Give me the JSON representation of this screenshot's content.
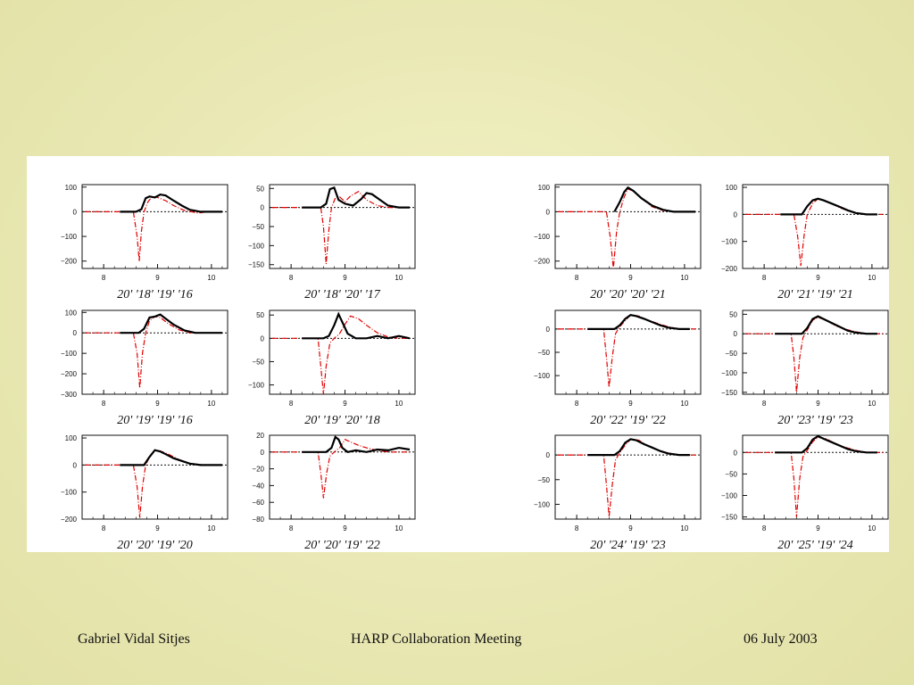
{
  "footer": {
    "author": "Gabriel Vidal Sitjes",
    "meeting": "HARP Collaboration Meeting",
    "date": "06 July 2003"
  },
  "colors": {
    "data": "#000000",
    "fit": "#e00000",
    "background": "#e9e8b4"
  },
  "chart_data": [
    {
      "type": "line",
      "label": "20' '18' '19' '16",
      "xlim": [
        7.6,
        10.3
      ],
      "ylim": [
        -230,
        110
      ],
      "xticks": [
        8,
        9,
        10
      ],
      "yticks": [
        100,
        0,
        -100,
        -200
      ],
      "yticklabels": [
        "100",
        "0",
        "−100",
        "−200"
      ],
      "series": [
        {
          "name": "",
          "kind": "fit",
          "x": [
            7.65,
            8.55,
            8.62,
            8.66,
            8.7,
            8.75,
            8.82,
            8.9,
            9.0,
            9.15,
            9.3,
            9.5,
            9.75,
            9.95,
            10.2
          ],
          "y": [
            0,
            0,
            -100,
            -200,
            -80,
            0,
            40,
            62,
            58,
            45,
            25,
            5,
            -5,
            0,
            0
          ]
        },
        {
          "name": "",
          "kind": "data",
          "x": [
            8.3,
            8.6,
            8.7,
            8.78,
            8.85,
            8.95,
            9.05,
            9.15,
            9.3,
            9.45,
            9.6,
            9.8,
            10.0,
            10.2
          ],
          "y": [
            0,
            0,
            10,
            55,
            62,
            58,
            70,
            66,
            45,
            25,
            8,
            0,
            0,
            0
          ]
        }
      ]
    },
    {
      "type": "line",
      "label": "20' '18' '20' '17",
      "xlim": [
        7.6,
        10.3
      ],
      "ylim": [
        -160,
        60
      ],
      "xticks": [
        8,
        9,
        10
      ],
      "yticks": [
        50,
        0,
        -50,
        -100,
        -150
      ],
      "yticklabels": [
        "50",
        "0",
        "−50",
        "−100",
        "−150"
      ],
      "series": [
        {
          "name": "",
          "kind": "fit",
          "x": [
            7.65,
            8.55,
            8.6,
            8.65,
            8.7,
            8.75,
            8.82,
            8.9,
            9.0,
            9.1,
            9.25,
            9.4,
            9.6,
            9.8,
            10.0,
            10.2
          ],
          "y": [
            0,
            0,
            -50,
            -148,
            -60,
            0,
            25,
            28,
            15,
            30,
            42,
            20,
            5,
            0,
            0,
            0
          ]
        },
        {
          "name": "",
          "kind": "data",
          "x": [
            8.2,
            8.55,
            8.65,
            8.72,
            8.8,
            8.88,
            9.0,
            9.15,
            9.3,
            9.4,
            9.5,
            9.65,
            9.8,
            10.0,
            10.2
          ],
          "y": [
            0,
            0,
            10,
            48,
            52,
            20,
            10,
            5,
            22,
            38,
            35,
            20,
            5,
            0,
            0
          ]
        }
      ]
    },
    {
      "type": "line",
      "label": "20' '20' '20' '21",
      "xlim": [
        7.6,
        10.3
      ],
      "ylim": [
        -230,
        110
      ],
      "xticks": [
        8,
        9,
        10
      ],
      "yticks": [
        100,
        0,
        -100,
        -200
      ],
      "yticklabels": [
        "100",
        "0",
        "−100",
        "−200"
      ],
      "series": [
        {
          "name": "",
          "kind": "fit",
          "x": [
            7.65,
            8.55,
            8.62,
            8.68,
            8.74,
            8.8,
            8.88,
            8.95,
            9.05,
            9.2,
            9.4,
            9.6,
            9.9,
            10.2
          ],
          "y": [
            0,
            0,
            -100,
            -230,
            -80,
            0,
            60,
            92,
            85,
            55,
            20,
            5,
            0,
            0
          ]
        },
        {
          "name": "",
          "kind": "data",
          "x": [
            8.7,
            8.8,
            8.88,
            8.95,
            9.05,
            9.2,
            9.4,
            9.6,
            9.8,
            10.0,
            10.2
          ],
          "y": [
            0,
            40,
            80,
            98,
            85,
            55,
            25,
            8,
            0,
            0,
            0
          ]
        }
      ]
    },
    {
      "type": "line",
      "label": "20' '21' '19' '21",
      "xlim": [
        7.6,
        10.3
      ],
      "ylim": [
        -200,
        110
      ],
      "xticks": [
        8,
        9,
        10
      ],
      "yticks": [
        100,
        0,
        -100,
        -200
      ],
      "yticklabels": [
        "100",
        "0",
        "−100",
        "−200"
      ],
      "series": [
        {
          "name": "",
          "kind": "fit",
          "x": [
            7.65,
            8.55,
            8.62,
            8.68,
            8.74,
            8.8,
            8.9,
            9.0,
            9.2,
            9.4,
            9.6,
            9.9,
            10.2
          ],
          "y": [
            0,
            0,
            -80,
            -190,
            -80,
            0,
            40,
            58,
            45,
            25,
            10,
            0,
            0
          ]
        },
        {
          "name": "",
          "kind": "data",
          "x": [
            8.3,
            8.7,
            8.8,
            8.9,
            9.0,
            9.1,
            9.25,
            9.4,
            9.55,
            9.7,
            9.9,
            10.1
          ],
          "y": [
            0,
            0,
            30,
            52,
            58,
            52,
            40,
            28,
            15,
            5,
            0,
            0
          ]
        }
      ]
    },
    {
      "type": "line",
      "label": "20' '19' '19' '16",
      "xlim": [
        7.6,
        10.3
      ],
      "ylim": [
        -300,
        110
      ],
      "xticks": [
        8,
        9,
        10
      ],
      "yticks": [
        100,
        0,
        -100,
        -200,
        -300
      ],
      "yticklabels": [
        "100",
        "0",
        "−100",
        "−200",
        "−300"
      ],
      "series": [
        {
          "name": "",
          "kind": "fit",
          "x": [
            7.65,
            8.55,
            8.62,
            8.67,
            8.72,
            8.78,
            8.85,
            8.95,
            9.05,
            9.2,
            9.4,
            9.6,
            9.9,
            10.2
          ],
          "y": [
            0,
            0,
            -100,
            -270,
            -100,
            0,
            60,
            80,
            75,
            45,
            15,
            0,
            0,
            0
          ]
        },
        {
          "name": "",
          "kind": "data",
          "x": [
            8.3,
            8.65,
            8.75,
            8.85,
            8.95,
            9.05,
            9.15,
            9.3,
            9.5,
            9.7,
            9.9,
            10.2
          ],
          "y": [
            0,
            0,
            20,
            75,
            80,
            90,
            70,
            40,
            12,
            0,
            0,
            0
          ]
        }
      ]
    },
    {
      "type": "line",
      "label": "20' '19' '20' '18",
      "xlim": [
        7.6,
        10.3
      ],
      "ylim": [
        -120,
        60
      ],
      "xticks": [
        8,
        9,
        10
      ],
      "yticks": [
        50,
        0,
        -50,
        -100
      ],
      "yticklabels": [
        "50",
        "0",
        "−50",
        "−100"
      ],
      "series": [
        {
          "name": "",
          "kind": "fit",
          "x": [
            7.65,
            8.5,
            8.55,
            8.6,
            8.65,
            8.72,
            8.8,
            8.9,
            9.0,
            9.1,
            9.25,
            9.4,
            9.6,
            9.8,
            10.0,
            10.2
          ],
          "y": [
            0,
            0,
            -60,
            -120,
            -60,
            -10,
            0,
            10,
            30,
            48,
            42,
            28,
            12,
            3,
            0,
            0
          ]
        },
        {
          "name": "",
          "kind": "data",
          "x": [
            8.2,
            8.6,
            8.7,
            8.8,
            8.88,
            8.95,
            9.05,
            9.2,
            9.4,
            9.6,
            9.8,
            10.0,
            10.2
          ],
          "y": [
            0,
            0,
            5,
            28,
            52,
            35,
            10,
            0,
            0,
            5,
            0,
            5,
            0
          ]
        }
      ]
    },
    {
      "type": "line",
      "label": "20' '22' '19' '22",
      "xlim": [
        7.6,
        10.3
      ],
      "ylim": [
        -140,
        40
      ],
      "xticks": [
        8,
        9,
        10
      ],
      "yticks": [
        0,
        -50,
        -100
      ],
      "yticklabels": [
        "0",
        "−50",
        "−100"
      ],
      "series": [
        {
          "name": "",
          "kind": "fit",
          "x": [
            7.65,
            8.5,
            8.55,
            8.6,
            8.66,
            8.72,
            8.8,
            8.9,
            9.0,
            9.15,
            9.3,
            9.5,
            9.7,
            9.9,
            10.2
          ],
          "y": [
            0,
            0,
            -60,
            -125,
            -60,
            -10,
            5,
            18,
            30,
            28,
            20,
            12,
            5,
            0,
            0
          ]
        },
        {
          "name": "",
          "kind": "data",
          "x": [
            8.2,
            8.7,
            8.8,
            8.9,
            9.0,
            9.1,
            9.25,
            9.4,
            9.55,
            9.7,
            9.9,
            10.1
          ],
          "y": [
            0,
            0,
            8,
            22,
            30,
            28,
            22,
            15,
            8,
            3,
            0,
            0
          ]
        }
      ]
    },
    {
      "type": "line",
      "label": "20' '23' '19' '23",
      "xlim": [
        7.6,
        10.3
      ],
      "ylim": [
        -155,
        60
      ],
      "xticks": [
        8,
        9,
        10
      ],
      "yticks": [
        50,
        0,
        -50,
        -100,
        -150
      ],
      "yticklabels": [
        "50",
        "0",
        "−50",
        "−100",
        "−150"
      ],
      "series": [
        {
          "name": "",
          "kind": "fit",
          "x": [
            7.65,
            8.5,
            8.55,
            8.6,
            8.66,
            8.72,
            8.8,
            8.9,
            9.0,
            9.15,
            9.3,
            9.5,
            9.7,
            9.9,
            10.2
          ],
          "y": [
            0,
            0,
            -60,
            -150,
            -60,
            -10,
            10,
            35,
            42,
            35,
            22,
            12,
            5,
            0,
            0
          ]
        },
        {
          "name": "",
          "kind": "data",
          "x": [
            8.2,
            8.7,
            8.8,
            8.9,
            9.0,
            9.1,
            9.25,
            9.4,
            9.55,
            9.7,
            9.9,
            10.1
          ],
          "y": [
            0,
            0,
            15,
            38,
            45,
            38,
            28,
            18,
            8,
            3,
            0,
            0
          ]
        }
      ]
    },
    {
      "type": "line",
      "label": "20' '20' '19' '20",
      "xlim": [
        7.6,
        10.3
      ],
      "ylim": [
        -200,
        110
      ],
      "xticks": [
        8,
        9,
        10
      ],
      "yticks": [
        100,
        0,
        -100,
        -200
      ],
      "yticklabels": [
        "100",
        "0",
        "−100",
        "−200"
      ],
      "series": [
        {
          "name": "",
          "kind": "fit",
          "x": [
            7.65,
            8.55,
            8.62,
            8.67,
            8.72,
            8.78,
            8.85,
            8.95,
            9.05,
            9.2,
            9.4,
            9.6,
            9.9,
            10.2
          ],
          "y": [
            0,
            0,
            -80,
            -195,
            -80,
            0,
            30,
            55,
            52,
            40,
            20,
            5,
            0,
            0
          ]
        },
        {
          "name": "",
          "kind": "data",
          "x": [
            8.3,
            8.75,
            8.85,
            8.95,
            9.05,
            9.15,
            9.3,
            9.45,
            9.6,
            9.8,
            10.0,
            10.2
          ],
          "y": [
            0,
            0,
            30,
            55,
            50,
            40,
            25,
            15,
            5,
            0,
            0,
            0
          ]
        }
      ]
    },
    {
      "type": "line",
      "label": "20' '20' '19' '22",
      "xlim": [
        7.6,
        10.3
      ],
      "ylim": [
        -80,
        20
      ],
      "xticks": [
        8,
        9,
        10
      ],
      "yticks": [
        20,
        0,
        -20,
        -40,
        -60,
        -80
      ],
      "yticklabels": [
        "20",
        "0",
        "−20",
        "−40",
        "−60",
        "−80"
      ],
      "series": [
        {
          "name": "",
          "kind": "fit",
          "x": [
            7.65,
            8.5,
            8.55,
            8.6,
            8.66,
            8.72,
            8.8,
            8.9,
            9.0,
            9.1,
            9.25,
            9.4,
            9.6,
            9.8,
            10.0,
            10.2
          ],
          "y": [
            0,
            0,
            -25,
            -55,
            -25,
            -5,
            0,
            5,
            15,
            12,
            8,
            5,
            2,
            0,
            0,
            0
          ]
        },
        {
          "name": "",
          "kind": "data",
          "x": [
            8.2,
            8.65,
            8.75,
            8.82,
            8.88,
            8.95,
            9.05,
            9.2,
            9.4,
            9.6,
            9.8,
            10.0,
            10.2
          ],
          "y": [
            0,
            0,
            5,
            18,
            15,
            5,
            0,
            2,
            0,
            3,
            2,
            5,
            3
          ]
        }
      ]
    },
    {
      "type": "line",
      "label": "20' '24' '19' '23",
      "xlim": [
        7.6,
        10.3
      ],
      "ylim": [
        -130,
        40
      ],
      "xticks": [
        8,
        9,
        10
      ],
      "yticks": [
        0,
        -50,
        -100
      ],
      "yticklabels": [
        "0",
        "−50",
        "−100"
      ],
      "series": [
        {
          "name": "",
          "kind": "fit",
          "x": [
            7.65,
            8.5,
            8.55,
            8.6,
            8.66,
            8.72,
            8.8,
            8.9,
            9.0,
            9.15,
            9.3,
            9.5,
            9.7,
            9.9,
            10.2
          ],
          "y": [
            0,
            0,
            -60,
            -125,
            -60,
            -10,
            5,
            20,
            32,
            30,
            20,
            10,
            4,
            0,
            0
          ]
        },
        {
          "name": "",
          "kind": "data",
          "x": [
            8.2,
            8.7,
            8.8,
            8.9,
            9.0,
            9.1,
            9.25,
            9.4,
            9.55,
            9.7,
            9.9,
            10.1
          ],
          "y": [
            0,
            0,
            8,
            25,
            32,
            30,
            22,
            15,
            8,
            3,
            0,
            0
          ]
        }
      ]
    },
    {
      "type": "line",
      "label": "20' '25' '19' '24",
      "xlim": [
        7.6,
        10.3
      ],
      "ylim": [
        -155,
        40
      ],
      "xticks": [
        8,
        9,
        10
      ],
      "yticks": [
        0,
        -50,
        -100,
        -150
      ],
      "yticklabels": [
        "0",
        "−50",
        "−100",
        "−150"
      ],
      "series": [
        {
          "name": "",
          "kind": "fit",
          "x": [
            7.65,
            8.5,
            8.55,
            8.6,
            8.66,
            8.72,
            8.8,
            8.9,
            9.0,
            9.15,
            9.3,
            9.5,
            9.7,
            9.9,
            10.2
          ],
          "y": [
            0,
            0,
            -60,
            -150,
            -60,
            -10,
            5,
            25,
            35,
            32,
            22,
            12,
            5,
            0,
            0
          ]
        },
        {
          "name": "",
          "kind": "data",
          "x": [
            8.2,
            8.7,
            8.8,
            8.9,
            9.0,
            9.1,
            9.25,
            9.4,
            9.55,
            9.7,
            9.9,
            10.1
          ],
          "y": [
            0,
            0,
            10,
            30,
            38,
            32,
            24,
            16,
            8,
            3,
            0,
            0
          ]
        }
      ]
    }
  ]
}
